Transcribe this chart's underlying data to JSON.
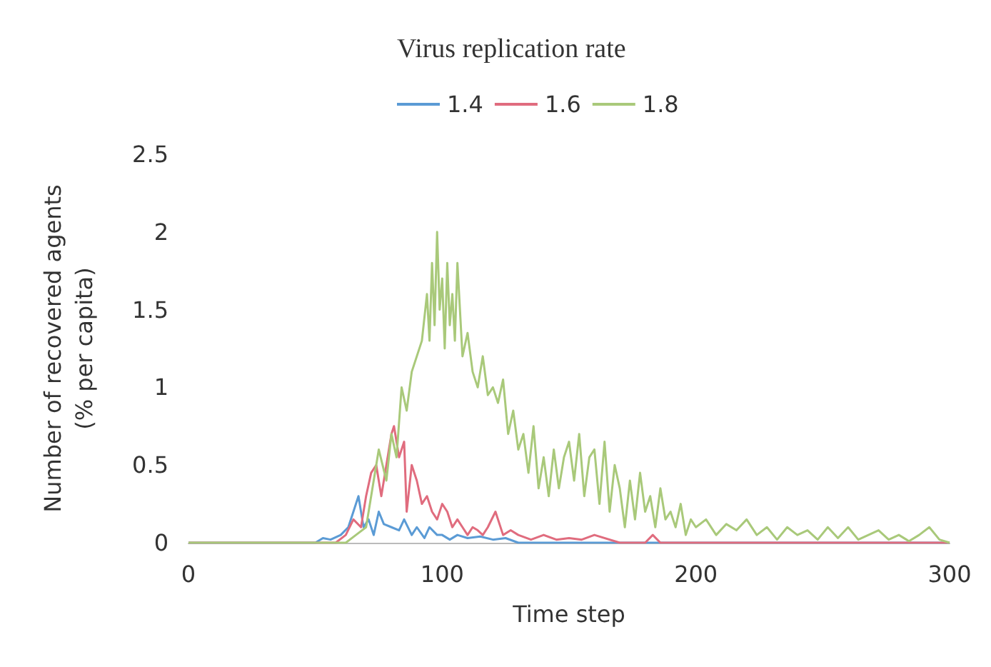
{
  "chart_data": {
    "type": "line",
    "legend_title": "Virus replication rate",
    "xlabel": "Time step",
    "ylabel": "Number of recovered agents\n(% per capita)",
    "xlim": [
      0,
      300
    ],
    "xticks": [
      0,
      100,
      200,
      300
    ],
    "ylim": [
      0,
      2.5
    ],
    "yticks": [
      0,
      0.5,
      1,
      1.5,
      2,
      2.5
    ],
    "legend": "top",
    "series": [
      {
        "name": "1.4",
        "color": "#5b9bd5",
        "x": [
          0,
          50,
          53,
          56,
          60,
          63,
          65,
          67,
          69,
          71,
          73,
          75,
          77,
          80,
          83,
          85,
          88,
          90,
          93,
          95,
          98,
          100,
          103,
          106,
          110,
          115,
          120,
          125,
          130,
          300
        ],
        "values": [
          0,
          0,
          0.03,
          0.02,
          0.05,
          0.1,
          0.2,
          0.3,
          0.1,
          0.15,
          0.05,
          0.2,
          0.12,
          0.1,
          0.08,
          0.15,
          0.05,
          0.1,
          0.03,
          0.1,
          0.05,
          0.05,
          0.02,
          0.05,
          0.03,
          0.04,
          0.02,
          0.03,
          0,
          0
        ]
      },
      {
        "name": "1.6",
        "color": "#e06c7e",
        "x": [
          0,
          58,
          62,
          65,
          68,
          70,
          72,
          74,
          76,
          78,
          80,
          81,
          83,
          85,
          86,
          88,
          90,
          92,
          94,
          96,
          98,
          100,
          102,
          104,
          106,
          108,
          110,
          112,
          114,
          116,
          118,
          121,
          124,
          127,
          130,
          135,
          140,
          145,
          150,
          155,
          160,
          170,
          180,
          183,
          186,
          190,
          300
        ],
        "values": [
          0,
          0,
          0.05,
          0.15,
          0.1,
          0.3,
          0.45,
          0.5,
          0.3,
          0.5,
          0.7,
          0.75,
          0.55,
          0.65,
          0.2,
          0.5,
          0.4,
          0.25,
          0.3,
          0.2,
          0.15,
          0.25,
          0.2,
          0.1,
          0.15,
          0.1,
          0.05,
          0.1,
          0.08,
          0.05,
          0.1,
          0.2,
          0.05,
          0.08,
          0.05,
          0.02,
          0.05,
          0.02,
          0.03,
          0.02,
          0.05,
          0,
          0,
          0.05,
          0,
          0,
          0
        ]
      },
      {
        "name": "1.8",
        "color": "#a9c97a",
        "x": [
          0,
          62,
          66,
          70,
          72,
          75,
          78,
          80,
          82,
          84,
          86,
          88,
          90,
          92,
          94,
          95,
          96,
          97,
          98,
          99,
          100,
          101,
          102,
          103,
          104,
          105,
          106,
          108,
          110,
          112,
          114,
          116,
          118,
          120,
          122,
          124,
          126,
          128,
          130,
          132,
          134,
          136,
          138,
          140,
          142,
          144,
          146,
          148,
          150,
          152,
          154,
          156,
          158,
          160,
          162,
          164,
          166,
          168,
          170,
          172,
          174,
          176,
          178,
          180,
          182,
          184,
          186,
          188,
          190,
          192,
          194,
          196,
          198,
          200,
          204,
          208,
          212,
          216,
          220,
          224,
          228,
          232,
          236,
          240,
          244,
          248,
          252,
          256,
          260,
          264,
          268,
          272,
          276,
          280,
          284,
          288,
          292,
          296,
          300
        ],
        "values": [
          0,
          0,
          0.05,
          0.1,
          0.3,
          0.6,
          0.4,
          0.7,
          0.55,
          1.0,
          0.85,
          1.1,
          1.2,
          1.3,
          1.6,
          1.3,
          1.8,
          1.4,
          2.0,
          1.5,
          1.7,
          1.25,
          1.8,
          1.4,
          1.6,
          1.3,
          1.8,
          1.2,
          1.35,
          1.1,
          1.0,
          1.2,
          0.95,
          1.0,
          0.9,
          1.05,
          0.7,
          0.85,
          0.6,
          0.7,
          0.45,
          0.75,
          0.35,
          0.55,
          0.3,
          0.6,
          0.35,
          0.55,
          0.65,
          0.4,
          0.7,
          0.3,
          0.55,
          0.6,
          0.25,
          0.65,
          0.2,
          0.5,
          0.35,
          0.1,
          0.4,
          0.15,
          0.45,
          0.2,
          0.3,
          0.1,
          0.35,
          0.15,
          0.2,
          0.1,
          0.25,
          0.05,
          0.15,
          0.1,
          0.15,
          0.05,
          0.12,
          0.08,
          0.15,
          0.05,
          0.1,
          0.02,
          0.1,
          0.05,
          0.08,
          0.02,
          0.1,
          0.03,
          0.1,
          0.02,
          0.05,
          0.08,
          0.02,
          0.05,
          0.01,
          0.05,
          0.1,
          0.02,
          0
        ]
      }
    ]
  }
}
